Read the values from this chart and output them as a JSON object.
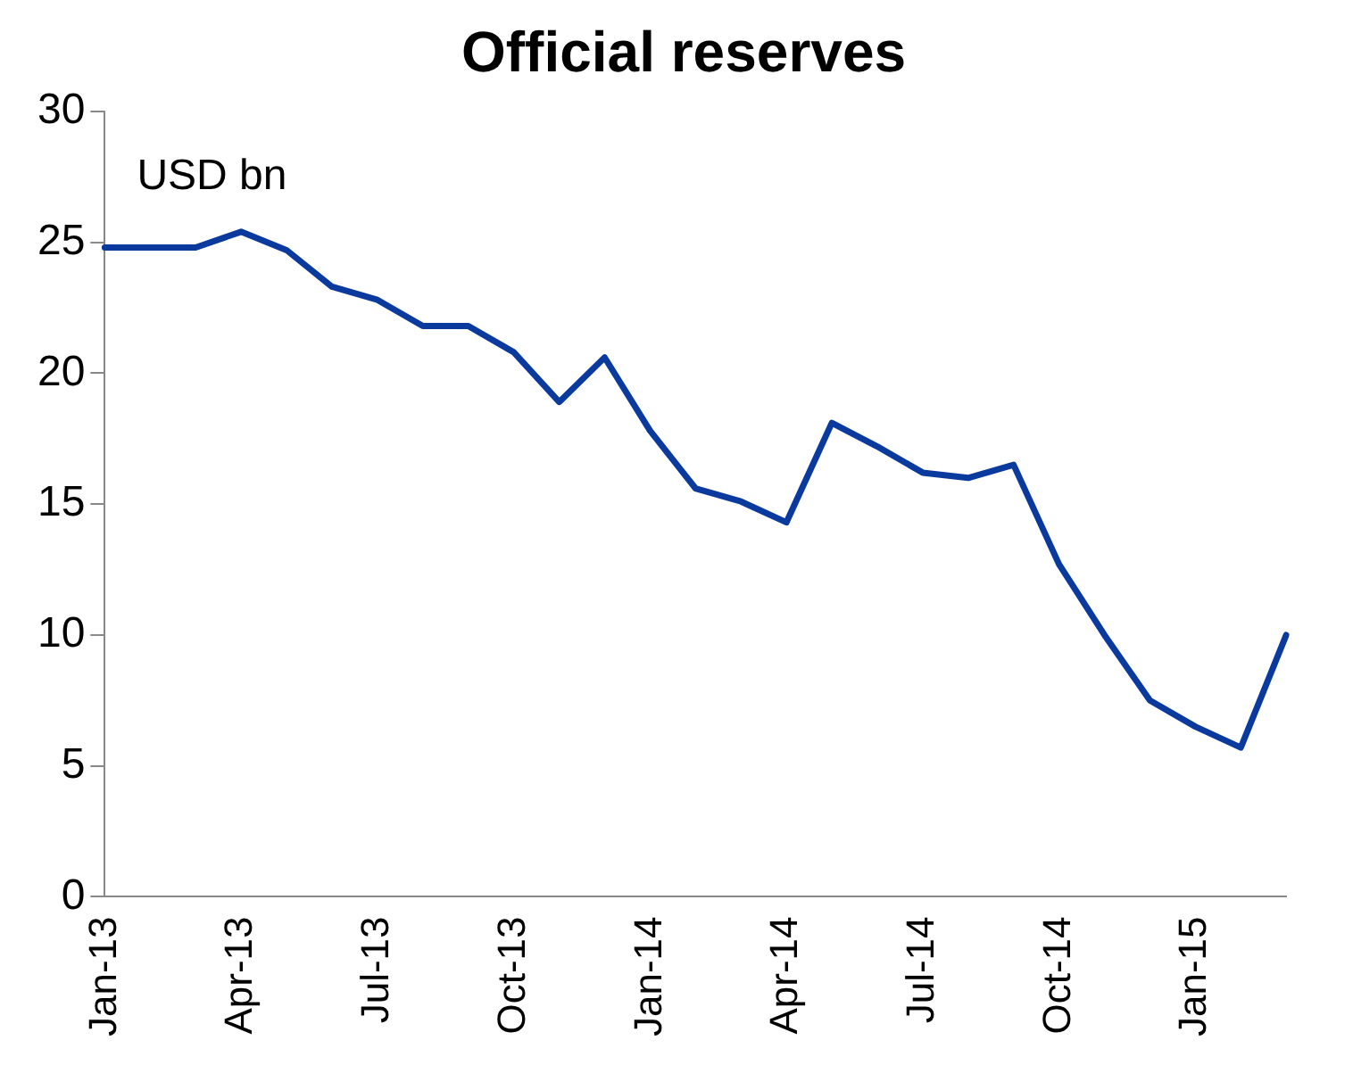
{
  "chart_data": {
    "type": "line",
    "title": "Official reserves",
    "annotations": [
      "USD bn"
    ],
    "categories": [
      "Jan-13",
      null,
      null,
      "Apr-13",
      null,
      null,
      "Jul-13",
      null,
      null,
      "Oct-13",
      null,
      null,
      "Jan-14",
      null,
      null,
      "Apr-14",
      null,
      null,
      "Jul-14",
      null,
      null,
      "Oct-14",
      null,
      null,
      "Jan-15",
      null,
      null
    ],
    "series": [
      {
        "color": "#0b3a9e",
        "values": [
          24.8,
          24.8,
          24.8,
          25.4,
          24.7,
          23.3,
          22.8,
          21.8,
          21.8,
          20.8,
          18.9,
          20.6,
          17.8,
          15.6,
          15.1,
          14.3,
          18.1,
          17.2,
          16.2,
          16.0,
          16.5,
          12.7,
          10.0,
          7.5,
          6.5,
          5.7,
          10.0
        ]
      }
    ],
    "ylim": [
      0,
      30
    ],
    "yticks": [
      0,
      5,
      10,
      15,
      20,
      25,
      30
    ],
    "grid": false,
    "legend": false,
    "marker": "none",
    "line_style": "solid"
  }
}
